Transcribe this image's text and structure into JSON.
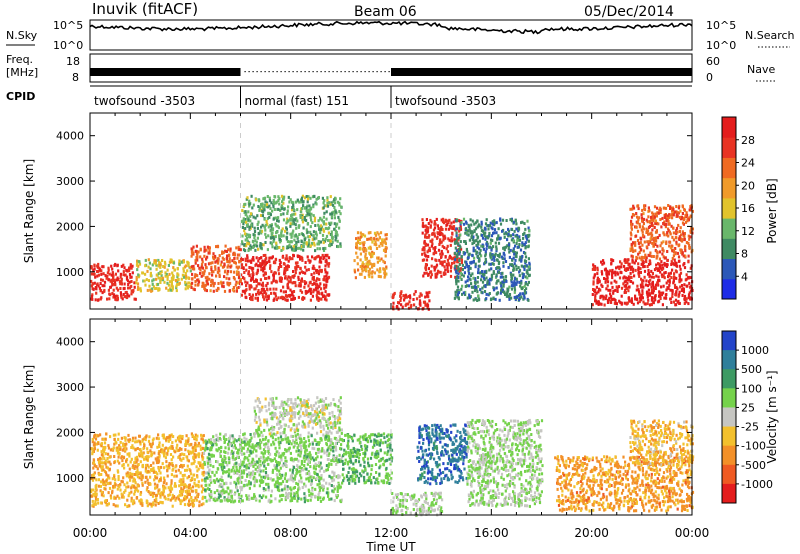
{
  "header": {
    "station": "Inuvik (fitACF)",
    "beam": "Beam 06",
    "date": "05/Dec/2014"
  },
  "noise_panel": {
    "left_label": "N.Sky",
    "left_ticks": [
      "10^5",
      "10^0"
    ],
    "right_ticks": [
      "10^5",
      "10^0"
    ],
    "right_label": "N.Search",
    "series": [
      {
        "name": "N.Sky",
        "style": "solid"
      },
      {
        "name": "N.Search",
        "style": "dotted"
      }
    ]
  },
  "freq_panel": {
    "left_label_1": "Freq.",
    "left_label_2": "[MHz]",
    "left_ticks": [
      "18",
      "8"
    ],
    "right_ticks": [
      "60",
      "0"
    ],
    "right_label": "Nave"
  },
  "cpid_panel": {
    "label": "CPID",
    "segments": [
      {
        "name": "twofsound -3503",
        "start_hour": 0,
        "end_hour": 6.0
      },
      {
        "name": "normal (fast) 151",
        "start_hour": 6.0,
        "end_hour": 12.0
      },
      {
        "name": "twofsound -3503",
        "start_hour": 12.0,
        "end_hour": 24.0
      }
    ]
  },
  "time_axis": {
    "label": "Time UT",
    "range_hours": [
      0,
      24
    ],
    "ticks": [
      {
        "hour": 0,
        "label": "00:00"
      },
      {
        "hour": 4,
        "label": "04:00"
      },
      {
        "hour": 8,
        "label": "08:00"
      },
      {
        "hour": 12,
        "label": "12:00"
      },
      {
        "hour": 16,
        "label": "16:00"
      },
      {
        "hour": 20,
        "label": "20:00"
      },
      {
        "hour": 24,
        "label": "00:00"
      }
    ]
  },
  "power_panel": {
    "ylabel": "Slant Range [km]",
    "yticks": [
      "1000",
      "2000",
      "3000",
      "4000"
    ],
    "colorbar_label": "Power [dB]",
    "colorbar_ticks": [
      "4",
      "8",
      "12",
      "16",
      "20",
      "24",
      "28"
    ],
    "colors": [
      "#1e2ce6",
      "#2c58b8",
      "#3f8a63",
      "#69b76b",
      "#e1c32c",
      "#f09a2a",
      "#ef6a22",
      "#e83323",
      "#e41d1d"
    ]
  },
  "velocity_panel": {
    "ylabel": "Slant Range [km]",
    "yticks": [
      "1000",
      "2000",
      "3000",
      "4000"
    ],
    "colorbar_label": "Velocity [m s⁻¹]",
    "colorbar_ticks": [
      "1000",
      "500",
      "100",
      "25",
      "-25",
      "-100",
      "-500",
      "-1000"
    ],
    "colors": [
      "#2344c9",
      "#2f7f9b",
      "#3d9a63",
      "#75d24b",
      "#c6c6c2",
      "#f3c02d",
      "#f39028",
      "#ef5a22",
      "#e41d1d"
    ]
  },
  "chart_data": [
    {
      "type": "heatmap",
      "title": "Power",
      "xlabel": "Time UT",
      "ylabel": "Slant Range [km]",
      "xlim": [
        0,
        24
      ],
      "ylim": [
        180,
        4500
      ],
      "colorbar": {
        "label": "Power [dB]",
        "range": [
          0,
          32
        ]
      },
      "regions": [
        {
          "t0": 0.0,
          "t1": 1.8,
          "r0": 400,
          "r1": 1200,
          "value": 28
        },
        {
          "t0": 1.8,
          "t1": 4.0,
          "r0": 600,
          "r1": 1300,
          "value": 16
        },
        {
          "t0": 4.0,
          "t1": 6.0,
          "r0": 600,
          "r1": 1600,
          "value": 24
        },
        {
          "t0": 6.0,
          "t1": 9.5,
          "r0": 400,
          "r1": 1400,
          "value": 28
        },
        {
          "t0": 6.0,
          "t1": 10.0,
          "r0": 1500,
          "r1": 2700,
          "value": 12
        },
        {
          "t0": 10.5,
          "t1": 11.8,
          "r0": 900,
          "r1": 1900,
          "value": 20
        },
        {
          "t0": 12.0,
          "t1": 13.5,
          "r0": 200,
          "r1": 600,
          "value": 28
        },
        {
          "t0": 13.2,
          "t1": 14.8,
          "r0": 900,
          "r1": 2200,
          "value": 28
        },
        {
          "t0": 14.5,
          "t1": 17.5,
          "r0": 400,
          "r1": 2200,
          "value": 8
        },
        {
          "t0": 20.0,
          "t1": 24.0,
          "r0": 300,
          "r1": 1300,
          "value": 30
        },
        {
          "t0": 21.5,
          "t1": 24.0,
          "r0": 1300,
          "r1": 2500,
          "value": 24
        }
      ]
    },
    {
      "type": "heatmap",
      "title": "Velocity",
      "xlabel": "Time UT",
      "ylabel": "Slant Range [km]",
      "xlim": [
        0,
        24
      ],
      "ylim": [
        180,
        4500
      ],
      "colorbar": {
        "label": "Velocity [m s⁻¹]",
        "range": [
          -1000,
          1000
        ]
      },
      "regions": [
        {
          "t0": 0.0,
          "t1": 4.5,
          "r0": 400,
          "r1": 2000,
          "value": -300
        },
        {
          "t0": 4.5,
          "t1": 10.0,
          "r0": 500,
          "r1": 2000,
          "value": 200
        },
        {
          "t0": 6.5,
          "t1": 10.0,
          "r0": 2000,
          "r1": 2800,
          "value": 10
        },
        {
          "t0": 10.0,
          "t1": 12.0,
          "r0": 900,
          "r1": 2000,
          "value": 300
        },
        {
          "t0": 12.0,
          "t1": 14.0,
          "r0": 200,
          "r1": 700,
          "value": 80
        },
        {
          "t0": 13.0,
          "t1": 15.0,
          "r0": 900,
          "r1": 2200,
          "value": 700
        },
        {
          "t0": 15.0,
          "t1": 18.0,
          "r0": 400,
          "r1": 2300,
          "value": 120
        },
        {
          "t0": 18.5,
          "t1": 24.0,
          "r0": 300,
          "r1": 1500,
          "value": -400
        },
        {
          "t0": 21.5,
          "t1": 24.0,
          "r0": 1300,
          "r1": 2300,
          "value": -250
        }
      ]
    }
  ]
}
